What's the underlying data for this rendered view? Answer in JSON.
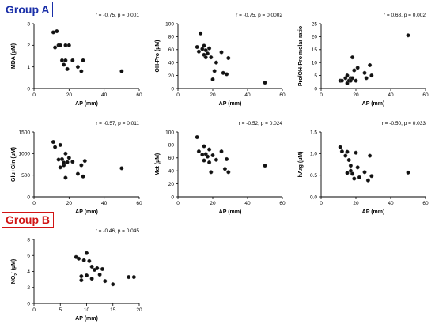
{
  "groups": [
    {
      "label": "Group A",
      "color": "#1a2fa8"
    },
    {
      "label": "Group B",
      "color": "#d11414"
    }
  ],
  "chart_data": [
    {
      "type": "scatter",
      "group": "Group A",
      "title": "",
      "stat": "r = -0.75, p = 0.001",
      "xlabel": "AP (mm)",
      "ylabel": "MDA (µM)",
      "xlim": [
        0,
        60
      ],
      "ylim": [
        0,
        3
      ],
      "xticks": [
        0,
        20,
        40,
        60
      ],
      "yticks": [
        0,
        1,
        2,
        3
      ],
      "x": [
        11,
        12,
        13,
        14,
        15,
        16,
        17,
        18,
        18,
        19,
        20,
        22,
        25,
        27,
        28,
        50
      ],
      "y": [
        2.6,
        1.9,
        2.65,
        2.0,
        2.0,
        1.3,
        1.1,
        2.0,
        1.3,
        0.9,
        2.0,
        1.3,
        1.0,
        0.8,
        1.3,
        0.8
      ]
    },
    {
      "type": "scatter",
      "group": "Group A",
      "title": "",
      "stat": "r = -0.75, p = 0.0002",
      "xlabel": "AP (mm)",
      "ylabel": "OH-Pro (µM)",
      "xlim": [
        0,
        60
      ],
      "ylim": [
        0,
        100
      ],
      "xticks": [
        0,
        20,
        40,
        60
      ],
      "yticks": [
        0,
        20,
        40,
        60,
        80,
        100
      ],
      "x": [
        11,
        12,
        13,
        14,
        15,
        15,
        16,
        16,
        17,
        18,
        19,
        20,
        21,
        22,
        25,
        26,
        28,
        29,
        50
      ],
      "y": [
        64,
        57,
        85,
        61,
        52,
        66,
        48,
        59,
        54,
        62,
        48,
        14,
        27,
        40,
        56,
        24,
        22,
        47,
        9
      ]
    },
    {
      "type": "scatter",
      "group": "Group A",
      "title": "",
      "stat": "r = 0.68, p = 0.002",
      "xlabel": "AP (mm)",
      "ylabel": "Pro/OH-Pro molar ratio",
      "xlim": [
        0,
        60
      ],
      "ylim": [
        0,
        25
      ],
      "xticks": [
        0,
        20,
        40,
        60
      ],
      "yticks": [
        0,
        5,
        10,
        15,
        20,
        25
      ],
      "x": [
        11,
        12,
        14,
        15,
        15,
        16,
        17,
        17,
        18,
        18,
        19,
        20,
        21,
        25,
        26,
        28,
        29,
        50
      ],
      "y": [
        3,
        3,
        4,
        2,
        5,
        3,
        4,
        3,
        4,
        12,
        7,
        3,
        8,
        6,
        4,
        9,
        5,
        20.5
      ]
    },
    {
      "type": "scatter",
      "group": "Group A",
      "title": "",
      "stat": "r = -0.57, p = 0.011",
      "xlabel": "AP (mm)",
      "ylabel": "Glu+Gln (µM)",
      "xlim": [
        0,
        60
      ],
      "ylim": [
        0,
        1500
      ],
      "xticks": [
        0,
        20,
        40,
        60
      ],
      "yticks": [
        0,
        500,
        1000,
        1500
      ],
      "x": [
        11,
        12,
        14,
        15,
        15,
        16,
        17,
        17,
        18,
        18,
        19,
        20,
        22,
        25,
        27,
        28,
        29,
        50
      ],
      "y": [
        1270,
        1150,
        860,
        1200,
        680,
        870,
        730,
        790,
        1000,
        440,
        800,
        900,
        810,
        530,
        730,
        470,
        830,
        660
      ]
    },
    {
      "type": "scatter",
      "group": "Group A",
      "title": "",
      "stat": "r = -0.52, p = 0.024",
      "xlabel": "AP (mm)",
      "ylabel": "Met (µM)",
      "xlim": [
        0,
        60
      ],
      "ylim": [
        0,
        100
      ],
      "xticks": [
        0,
        20,
        40,
        60
      ],
      "yticks": [
        0,
        20,
        40,
        60,
        80,
        100
      ],
      "x": [
        11,
        12,
        14,
        15,
        15,
        16,
        17,
        18,
        18,
        19,
        20,
        22,
        25,
        27,
        28,
        29,
        50
      ],
      "y": [
        92,
        70,
        65,
        78,
        56,
        66,
        62,
        73,
        53,
        38,
        64,
        57,
        70,
        43,
        58,
        38,
        48
      ]
    },
    {
      "type": "scatter",
      "group": "Group A",
      "title": "",
      "stat": "r = -0.50, p = 0.033",
      "xlabel": "AP (mm)",
      "ylabel": "hArg (µM)",
      "xlim": [
        0,
        60
      ],
      "ylim": [
        0,
        1.5
      ],
      "xticks": [
        0,
        20,
        40,
        60
      ],
      "yticks": [
        0,
        0.5,
        1.0,
        1.5
      ],
      "x": [
        11,
        12,
        14,
        15,
        15,
        16,
        17,
        17,
        18,
        19,
        20,
        21,
        22,
        25,
        27,
        28,
        29,
        50
      ],
      "y": [
        1.15,
        1.05,
        0.95,
        1.04,
        0.55,
        0.85,
        0.6,
        0.72,
        0.53,
        0.42,
        1.02,
        0.68,
        0.45,
        0.57,
        0.38,
        0.95,
        0.48,
        0.56
      ]
    },
    {
      "type": "scatter",
      "group": "Group B",
      "title": "",
      "stat": "r = -0.46, p = 0.045",
      "xlabel": "AP (mm)",
      "ylabel": "NO2- (µM)",
      "ylabel_parts": {
        "base": "NO",
        "sub": "2",
        "sup": "-",
        "unit": " (µM)"
      },
      "xlim": [
        0,
        20
      ],
      "ylim": [
        0,
        8
      ],
      "xticks": [
        0,
        5,
        10,
        15,
        20
      ],
      "yticks": [
        0,
        2,
        4,
        6,
        8
      ],
      "x": [
        8,
        8.5,
        9,
        9,
        9.5,
        10,
        10,
        10.5,
        11,
        11,
        11.5,
        12,
        12.5,
        13,
        13.5,
        15,
        18,
        19
      ],
      "y": [
        5.8,
        5.6,
        3.4,
        2.9,
        5.4,
        6.3,
        3.5,
        5.3,
        4.6,
        3.1,
        4.2,
        4.4,
        3.6,
        4.3,
        2.8,
        2.4,
        3.3,
        3.3
      ]
    }
  ]
}
